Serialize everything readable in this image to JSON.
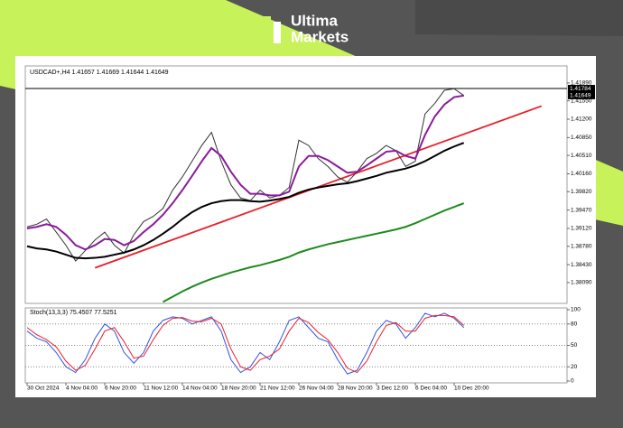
{
  "logo": {
    "line1": "Ultima",
    "line2": "Markets"
  },
  "chart_data": {
    "type": "line",
    "title": "USDCAD+,H4 1.41657 1.41669 1.41644 1.41649",
    "categories": [
      "30 Oct 2024",
      null,
      null,
      null,
      "4 Nov 04:00",
      null,
      null,
      null,
      "6 Nov 20:00",
      null,
      null,
      null,
      "11 Nov 12:00",
      null,
      null,
      null,
      "14 Nov 04:00",
      null,
      null,
      null,
      "18 Nov 20:00",
      null,
      null,
      null,
      "21 Nov 12:00",
      null,
      null,
      null,
      "26 Nov 04:00",
      null,
      null,
      null,
      "28 Nov 20:00",
      null,
      null,
      null,
      "3 Dec 12:00",
      null,
      null,
      null,
      "6 Dec 04:00",
      null,
      null,
      null,
      "10 Dec 20:00",
      null,
      null,
      null,
      null,
      null,
      null,
      null,
      null,
      null,
      null,
      null
    ],
    "series": [
      {
        "name": "USDCAD+",
        "color": "#333333",
        "values": [
          1.3915,
          1.392,
          1.393,
          1.3905,
          1.388,
          1.385,
          1.387,
          1.389,
          1.3905,
          1.388,
          1.3865,
          1.39,
          1.3925,
          1.3935,
          1.395,
          1.3985,
          1.401,
          1.404,
          1.407,
          1.4095,
          1.404,
          1.3995,
          1.397,
          1.3965,
          1.3985,
          1.397,
          1.3975,
          1.399,
          1.408,
          1.407,
          1.4045,
          1.403,
          1.401,
          1.4,
          1.402,
          1.4045,
          1.4055,
          1.407,
          1.406,
          1.403,
          1.404,
          1.413,
          1.415,
          1.4175,
          1.4178,
          1.4165,
          null,
          null,
          null,
          null,
          null,
          null,
          null,
          null,
          null,
          null
        ]
      },
      {
        "color": "#8b1a9c",
        "values": [
          1.3912,
          1.3915,
          1.392,
          1.3915,
          1.39,
          1.388,
          1.3872,
          1.388,
          1.3892,
          1.389,
          1.388,
          1.3888,
          1.3905,
          1.392,
          1.3938,
          1.396,
          1.3985,
          1.4012,
          1.404,
          1.4065,
          1.405,
          1.402,
          1.3995,
          1.3978,
          1.3978,
          1.3975,
          1.3975,
          1.3982,
          1.403,
          1.405,
          1.405,
          1.4042,
          1.403,
          1.4018,
          1.402,
          1.4032,
          1.4045,
          1.4058,
          1.406,
          1.405,
          1.4045,
          1.409,
          1.4125,
          1.4148,
          1.4162,
          1.4165,
          null,
          null,
          null,
          null,
          null,
          null,
          null,
          null,
          null,
          null
        ]
      },
      {
        "color": "#000000",
        "values": [
          1.3878,
          1.3874,
          1.3872,
          1.3868,
          1.3862,
          1.3856,
          1.3855,
          1.3856,
          1.3858,
          1.3862,
          1.3866,
          1.3872,
          1.388,
          1.389,
          1.3902,
          1.3915,
          1.393,
          1.3943,
          1.3953,
          1.396,
          1.3964,
          1.3966,
          1.3966,
          1.3964,
          1.3963,
          1.3965,
          1.3968,
          1.3972,
          1.398,
          1.3986,
          1.399,
          1.3993,
          1.3996,
          1.3998,
          1.4002,
          1.4007,
          1.4012,
          1.4018,
          1.4022,
          1.4026,
          1.4032,
          1.404,
          1.405,
          1.406,
          1.4068,
          1.4075,
          null,
          null,
          null,
          null,
          null,
          null,
          null,
          null,
          null,
          null
        ]
      },
      {
        "color": "#1e8a1e",
        "values": [
          null,
          null,
          null,
          null,
          null,
          null,
          null,
          null,
          null,
          null,
          null,
          null,
          null,
          null,
          1.3772,
          1.3782,
          1.3792,
          1.3801,
          1.3809,
          1.3816,
          1.3822,
          1.3828,
          1.3833,
          1.3838,
          1.3842,
          1.3847,
          1.3852,
          1.3858,
          1.3866,
          1.3872,
          1.3877,
          1.3882,
          1.3886,
          1.389,
          1.3894,
          1.3898,
          1.3902,
          1.3906,
          1.391,
          1.3915,
          1.3922,
          1.393,
          1.3938,
          1.3946,
          1.3953,
          1.396,
          null,
          null,
          null,
          null,
          null,
          null,
          null,
          null,
          null,
          null
        ]
      }
    ],
    "hline": {
      "value": 1.41784,
      "color": "#000000"
    },
    "trendline": {
      "color": "#e8202a",
      "x": [
        7,
        53
      ],
      "values": [
        1.3837,
        1.4145
      ]
    },
    "price_tags": [
      {
        "value": 1.41784,
        "label": "1.41784"
      },
      {
        "value": 1.41649,
        "label": "1.41649"
      }
    ],
    "ylim": [
      1.3771,
      1.4218
    ],
    "yticks": [
      {
        "value": 1.4189,
        "label": "1.41890"
      },
      {
        "value": 1.4155,
        "label": "1.41550"
      },
      {
        "value": 1.412,
        "label": "1.41200"
      },
      {
        "value": 1.4085,
        "label": "1.40850"
      },
      {
        "value": 1.4051,
        "label": "1.40510"
      },
      {
        "value": 1.4016,
        "label": "1.40160"
      },
      {
        "value": 1.3982,
        "label": "1.39820"
      },
      {
        "value": 1.3947,
        "label": "1.39470"
      },
      {
        "value": 1.3912,
        "label": "1.39120"
      },
      {
        "value": 1.3878,
        "label": "1.38780"
      },
      {
        "value": 1.3843,
        "label": "1.38430"
      },
      {
        "value": 1.3809,
        "label": "1.38090"
      }
    ],
    "stoch": {
      "title": "Stoch(13,3,3) 75.4507 77.5251",
      "ylim": [
        0,
        100
      ],
      "yticks": [
        0,
        20,
        50,
        80,
        100
      ],
      "levels": [
        20,
        50,
        80
      ],
      "series": [
        {
          "color": "#3050e0",
          "values": [
            70,
            60,
            55,
            40,
            20,
            12,
            30,
            60,
            80,
            70,
            40,
            25,
            40,
            70,
            85,
            90,
            88,
            80,
            85,
            90,
            70,
            30,
            12,
            20,
            40,
            30,
            55,
            85,
            90,
            75,
            60,
            55,
            30,
            10,
            15,
            40,
            70,
            85,
            80,
            60,
            75,
            95,
            90,
            95,
            88,
            75,
            null,
            null,
            null,
            null,
            null,
            null,
            null,
            null,
            null,
            null
          ]
        },
        {
          "color": "#e8202a",
          "values": [
            75,
            65,
            58,
            48,
            28,
            15,
            22,
            45,
            70,
            75,
            55,
            32,
            35,
            58,
            78,
            88,
            89,
            84,
            83,
            88,
            80,
            45,
            20,
            15,
            30,
            35,
            45,
            70,
            88,
            82,
            68,
            58,
            40,
            18,
            12,
            28,
            55,
            78,
            82,
            70,
            70,
            88,
            92,
            92,
            90,
            78,
            null,
            null,
            null,
            null,
            null,
            null,
            null,
            null,
            null,
            null
          ]
        }
      ]
    }
  }
}
